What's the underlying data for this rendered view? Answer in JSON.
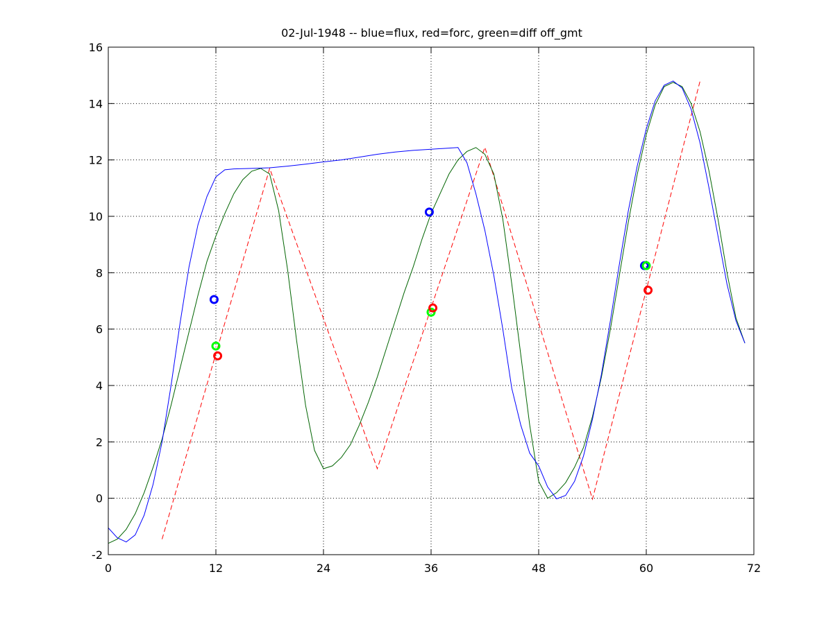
{
  "chart_data": {
    "type": "line",
    "title": "02-Jul-1948 -- blue=flux, red=forc, green=diff off_gmt",
    "xlabel": "",
    "ylabel": "",
    "xlim": [
      0,
      72
    ],
    "ylim": [
      -2,
      16
    ],
    "xticks": [
      0,
      12,
      24,
      36,
      48,
      60,
      72
    ],
    "yticks": [
      -2,
      0,
      2,
      4,
      6,
      8,
      10,
      12,
      14,
      16
    ],
    "grid": true,
    "legend": "none",
    "series": [
      {
        "color": "#0000ff",
        "style": "solid",
        "points": [
          [
            0,
            -1.05
          ],
          [
            1,
            -1.4
          ],
          [
            2,
            -1.55
          ],
          [
            3,
            -1.3
          ],
          [
            4,
            -0.6
          ],
          [
            5,
            0.5
          ],
          [
            6,
            2.0
          ],
          [
            7,
            4.0
          ],
          [
            8,
            6.2
          ],
          [
            9,
            8.2
          ],
          [
            10,
            9.7
          ],
          [
            11,
            10.7
          ],
          [
            12,
            11.4
          ],
          [
            13,
            11.65
          ],
          [
            14,
            11.68
          ],
          [
            16,
            11.7
          ],
          [
            18,
            11.72
          ],
          [
            20,
            11.78
          ],
          [
            22,
            11.85
          ],
          [
            24,
            11.93
          ],
          [
            26,
            12.0
          ],
          [
            28,
            12.1
          ],
          [
            30,
            12.2
          ],
          [
            32,
            12.28
          ],
          [
            34,
            12.34
          ],
          [
            36,
            12.38
          ],
          [
            38,
            12.42
          ],
          [
            39,
            12.44
          ],
          [
            40,
            11.9
          ],
          [
            41,
            10.8
          ],
          [
            42,
            9.5
          ],
          [
            43,
            7.9
          ],
          [
            44,
            6.0
          ],
          [
            45,
            3.9
          ],
          [
            46,
            2.6
          ],
          [
            47,
            1.6
          ],
          [
            48,
            1.15
          ],
          [
            49,
            0.4
          ],
          [
            50,
            -0.02
          ],
          [
            51,
            0.1
          ],
          [
            52,
            0.6
          ],
          [
            53,
            1.5
          ],
          [
            54,
            2.8
          ],
          [
            55,
            4.4
          ],
          [
            56,
            6.3
          ],
          [
            57,
            8.3
          ],
          [
            58,
            10.2
          ],
          [
            59,
            11.8
          ],
          [
            60,
            13.1
          ],
          [
            61,
            14.1
          ],
          [
            62,
            14.65
          ],
          [
            63,
            14.8
          ],
          [
            64,
            14.55
          ],
          [
            65,
            13.8
          ],
          [
            66,
            12.6
          ],
          [
            67,
            11.0
          ],
          [
            68,
            9.3
          ],
          [
            69,
            7.6
          ],
          [
            70,
            6.3
          ],
          [
            71,
            5.5
          ]
        ]
      },
      {
        "color": "#006400",
        "style": "solid",
        "points": [
          [
            0,
            -1.6
          ],
          [
            1,
            -1.45
          ],
          [
            2,
            -1.1
          ],
          [
            3,
            -0.55
          ],
          [
            4,
            0.2
          ],
          [
            5,
            1.1
          ],
          [
            6,
            2.1
          ],
          [
            7,
            3.3
          ],
          [
            8,
            4.6
          ],
          [
            9,
            5.9
          ],
          [
            10,
            7.2
          ],
          [
            11,
            8.4
          ],
          [
            12,
            9.3
          ],
          [
            13,
            10.1
          ],
          [
            14,
            10.8
          ],
          [
            15,
            11.3
          ],
          [
            16,
            11.6
          ],
          [
            17,
            11.7
          ],
          [
            18,
            11.5
          ],
          [
            19,
            10.2
          ],
          [
            20,
            8.1
          ],
          [
            21,
            5.6
          ],
          [
            22,
            3.3
          ],
          [
            23,
            1.7
          ],
          [
            24,
            1.05
          ],
          [
            25,
            1.15
          ],
          [
            26,
            1.45
          ],
          [
            27,
            1.9
          ],
          [
            28,
            2.6
          ],
          [
            29,
            3.4
          ],
          [
            30,
            4.3
          ],
          [
            31,
            5.3
          ],
          [
            32,
            6.3
          ],
          [
            33,
            7.3
          ],
          [
            34,
            8.2
          ],
          [
            35,
            9.2
          ],
          [
            36,
            10.1
          ],
          [
            37,
            10.8
          ],
          [
            38,
            11.5
          ],
          [
            39,
            12.0
          ],
          [
            40,
            12.3
          ],
          [
            41,
            12.44
          ],
          [
            42,
            12.2
          ],
          [
            43,
            11.5
          ],
          [
            44,
            9.9
          ],
          [
            45,
            7.6
          ],
          [
            46,
            5.1
          ],
          [
            47,
            2.6
          ],
          [
            48,
            0.6
          ],
          [
            49,
            0.0
          ],
          [
            50,
            0.2
          ],
          [
            51,
            0.55
          ],
          [
            52,
            1.1
          ],
          [
            53,
            1.8
          ],
          [
            54,
            2.9
          ],
          [
            55,
            4.3
          ],
          [
            56,
            6.0
          ],
          [
            57,
            7.9
          ],
          [
            58,
            9.8
          ],
          [
            59,
            11.5
          ],
          [
            60,
            12.9
          ],
          [
            61,
            13.95
          ],
          [
            62,
            14.6
          ],
          [
            63,
            14.75
          ],
          [
            64,
            14.6
          ],
          [
            65,
            14.0
          ],
          [
            66,
            13.0
          ],
          [
            67,
            11.6
          ],
          [
            68,
            9.9
          ],
          [
            69,
            8.0
          ],
          [
            70,
            6.4
          ],
          [
            71,
            5.5
          ]
        ]
      },
      {
        "color": "#ff0000",
        "style": "dashed",
        "points": [
          [
            6,
            -1.45
          ],
          [
            18,
            11.7
          ],
          [
            30,
            1.05
          ],
          [
            42,
            12.45
          ],
          [
            54,
            -0.03
          ],
          [
            66,
            14.8
          ]
        ]
      }
    ],
    "markers": [
      {
        "x": 11.8,
        "y": 7.05,
        "color": "#0000ff"
      },
      {
        "x": 12.0,
        "y": 5.4,
        "color": "#00ff00"
      },
      {
        "x": 12.2,
        "y": 5.05,
        "color": "#ff0000"
      },
      {
        "x": 35.8,
        "y": 10.15,
        "color": "#0000ff"
      },
      {
        "x": 36.0,
        "y": 6.6,
        "color": "#00ff00"
      },
      {
        "x": 36.2,
        "y": 6.75,
        "color": "#ff0000"
      },
      {
        "x": 59.8,
        "y": 8.25,
        "color": "#0000ff"
      },
      {
        "x": 60.0,
        "y": 8.25,
        "color": "#00ff00"
      },
      {
        "x": 60.2,
        "y": 7.38,
        "color": "#ff0000"
      }
    ]
  }
}
